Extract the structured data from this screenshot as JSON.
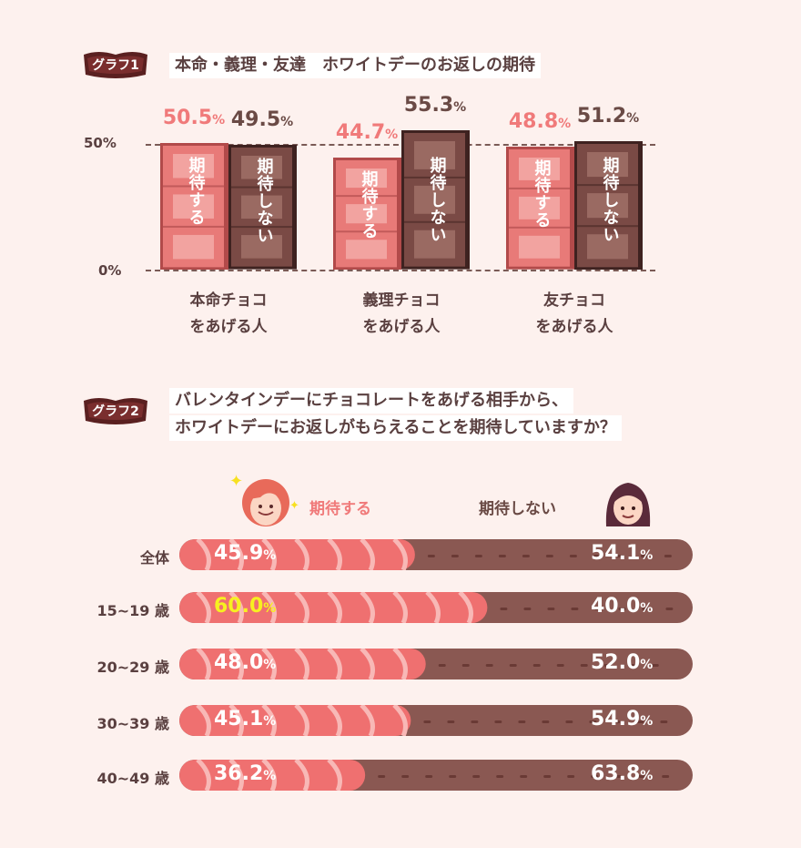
{
  "graph1": {
    "badge": "グラフ1",
    "title": "本命・義理・友達　ホワイトデーのお返しの期待",
    "yticks": [
      "50%",
      "0%"
    ],
    "legend_expect": "期待する",
    "legend_not": "期待しない"
  },
  "graph2": {
    "badge": "グラフ2",
    "title_line1": "バレンタインデーにチョコレートをあげる相手から、",
    "title_line2": "ホワイトデーにお返しがもらえることを期待していますか？",
    "legend_expect": "期待する",
    "legend_not": "期待しない"
  },
  "colors": {
    "pink": "#f07a7a",
    "brown": "#8a5852",
    "highlight": "#f7f020",
    "bg": "#fdf1ee"
  },
  "chart_data": [
    {
      "type": "bar",
      "categories": [
        "本命チョコ\nをあげる人",
        "義理チョコ\nをあげる人",
        "友チョコ\nをあげる人"
      ],
      "series": [
        {
          "name": "期待する",
          "values": [
            50.5,
            44.7,
            48.8
          ],
          "labels": [
            "50.5",
            "44.7",
            "48.8"
          ]
        },
        {
          "name": "期待しない",
          "values": [
            49.5,
            55.3,
            51.2
          ],
          "labels": [
            "49.5",
            "55.3",
            "51.2"
          ]
        }
      ],
      "ylim": [
        0,
        100
      ],
      "yticks": [
        "0%",
        "50%"
      ],
      "unit": "%"
    },
    {
      "type": "bar",
      "orientation": "horizontal-stacked",
      "categories": [
        "全体",
        "15~19 歳",
        "20~29 歳",
        "30~39 歳",
        "40~49 歳"
      ],
      "series": [
        {
          "name": "期待する",
          "values": [
            45.9,
            60.0,
            48.0,
            45.1,
            36.2
          ],
          "labels": [
            "45.9",
            "60.0",
            "48.0",
            "45.1",
            "36.2"
          ]
        },
        {
          "name": "期待しない",
          "values": [
            54.1,
            40.0,
            52.0,
            54.9,
            63.8
          ],
          "labels": [
            "54.1",
            "40.0",
            "52.0",
            "54.9",
            "63.8"
          ]
        }
      ],
      "unit": "%",
      "highlighted": {
        "category": "15~19 歳",
        "series": "期待する"
      }
    }
  ]
}
